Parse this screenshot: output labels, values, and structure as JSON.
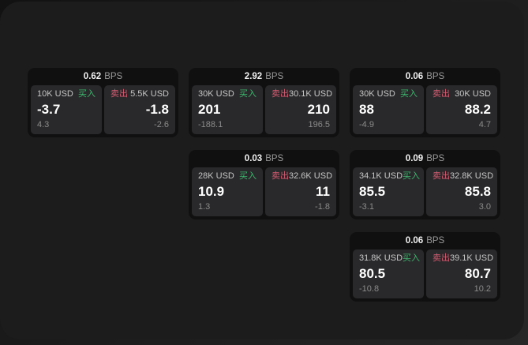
{
  "labels": {
    "bps_unit": "BPS",
    "buy": "买入",
    "sell": "卖出"
  },
  "colors": {
    "outer_background": "#1a1a1a",
    "panel_background": "#1c1c1d",
    "card_background": "#101011",
    "cell_background": "#29292b",
    "buy_green": "#3fb56e",
    "sell_red": "#d65a70"
  },
  "cards": [
    {
      "row": 1,
      "col": 1,
      "bps": "0.62",
      "buy": {
        "amount": "10K USD",
        "price": "-3.7",
        "delta": "4.3"
      },
      "sell": {
        "amount": "5.5K USD",
        "price": "-1.8",
        "delta": "-2.6"
      }
    },
    {
      "row": 1,
      "col": 2,
      "bps": "2.92",
      "buy": {
        "amount": "30K USD",
        "price": "201",
        "delta": "-188.1"
      },
      "sell": {
        "amount": "30.1K USD",
        "price": "210",
        "delta": "196.5"
      }
    },
    {
      "row": 1,
      "col": 3,
      "bps": "0.06",
      "buy": {
        "amount": "30K USD",
        "price": "88",
        "delta": "-4.9"
      },
      "sell": {
        "amount": "30K USD",
        "price": "88.2",
        "delta": "4.7"
      }
    },
    {
      "row": 2,
      "col": 2,
      "bps": "0.03",
      "buy": {
        "amount": "28K USD",
        "price": "10.9",
        "delta": "1.3"
      },
      "sell": {
        "amount": "32.6K USD",
        "price": "11",
        "delta": "-1.8"
      }
    },
    {
      "row": 2,
      "col": 3,
      "bps": "0.09",
      "buy": {
        "amount": "34.1K USD",
        "price": "85.5",
        "delta": "-3.1"
      },
      "sell": {
        "amount": "32.8K USD",
        "price": "85.8",
        "delta": "3.0"
      }
    },
    {
      "row": 3,
      "col": 3,
      "bps": "0.06",
      "buy": {
        "amount": "31.8K USD",
        "price": "80.5",
        "delta": "-10.8"
      },
      "sell": {
        "amount": "39.1K USD",
        "price": "80.7",
        "delta": "10.2"
      }
    }
  ]
}
